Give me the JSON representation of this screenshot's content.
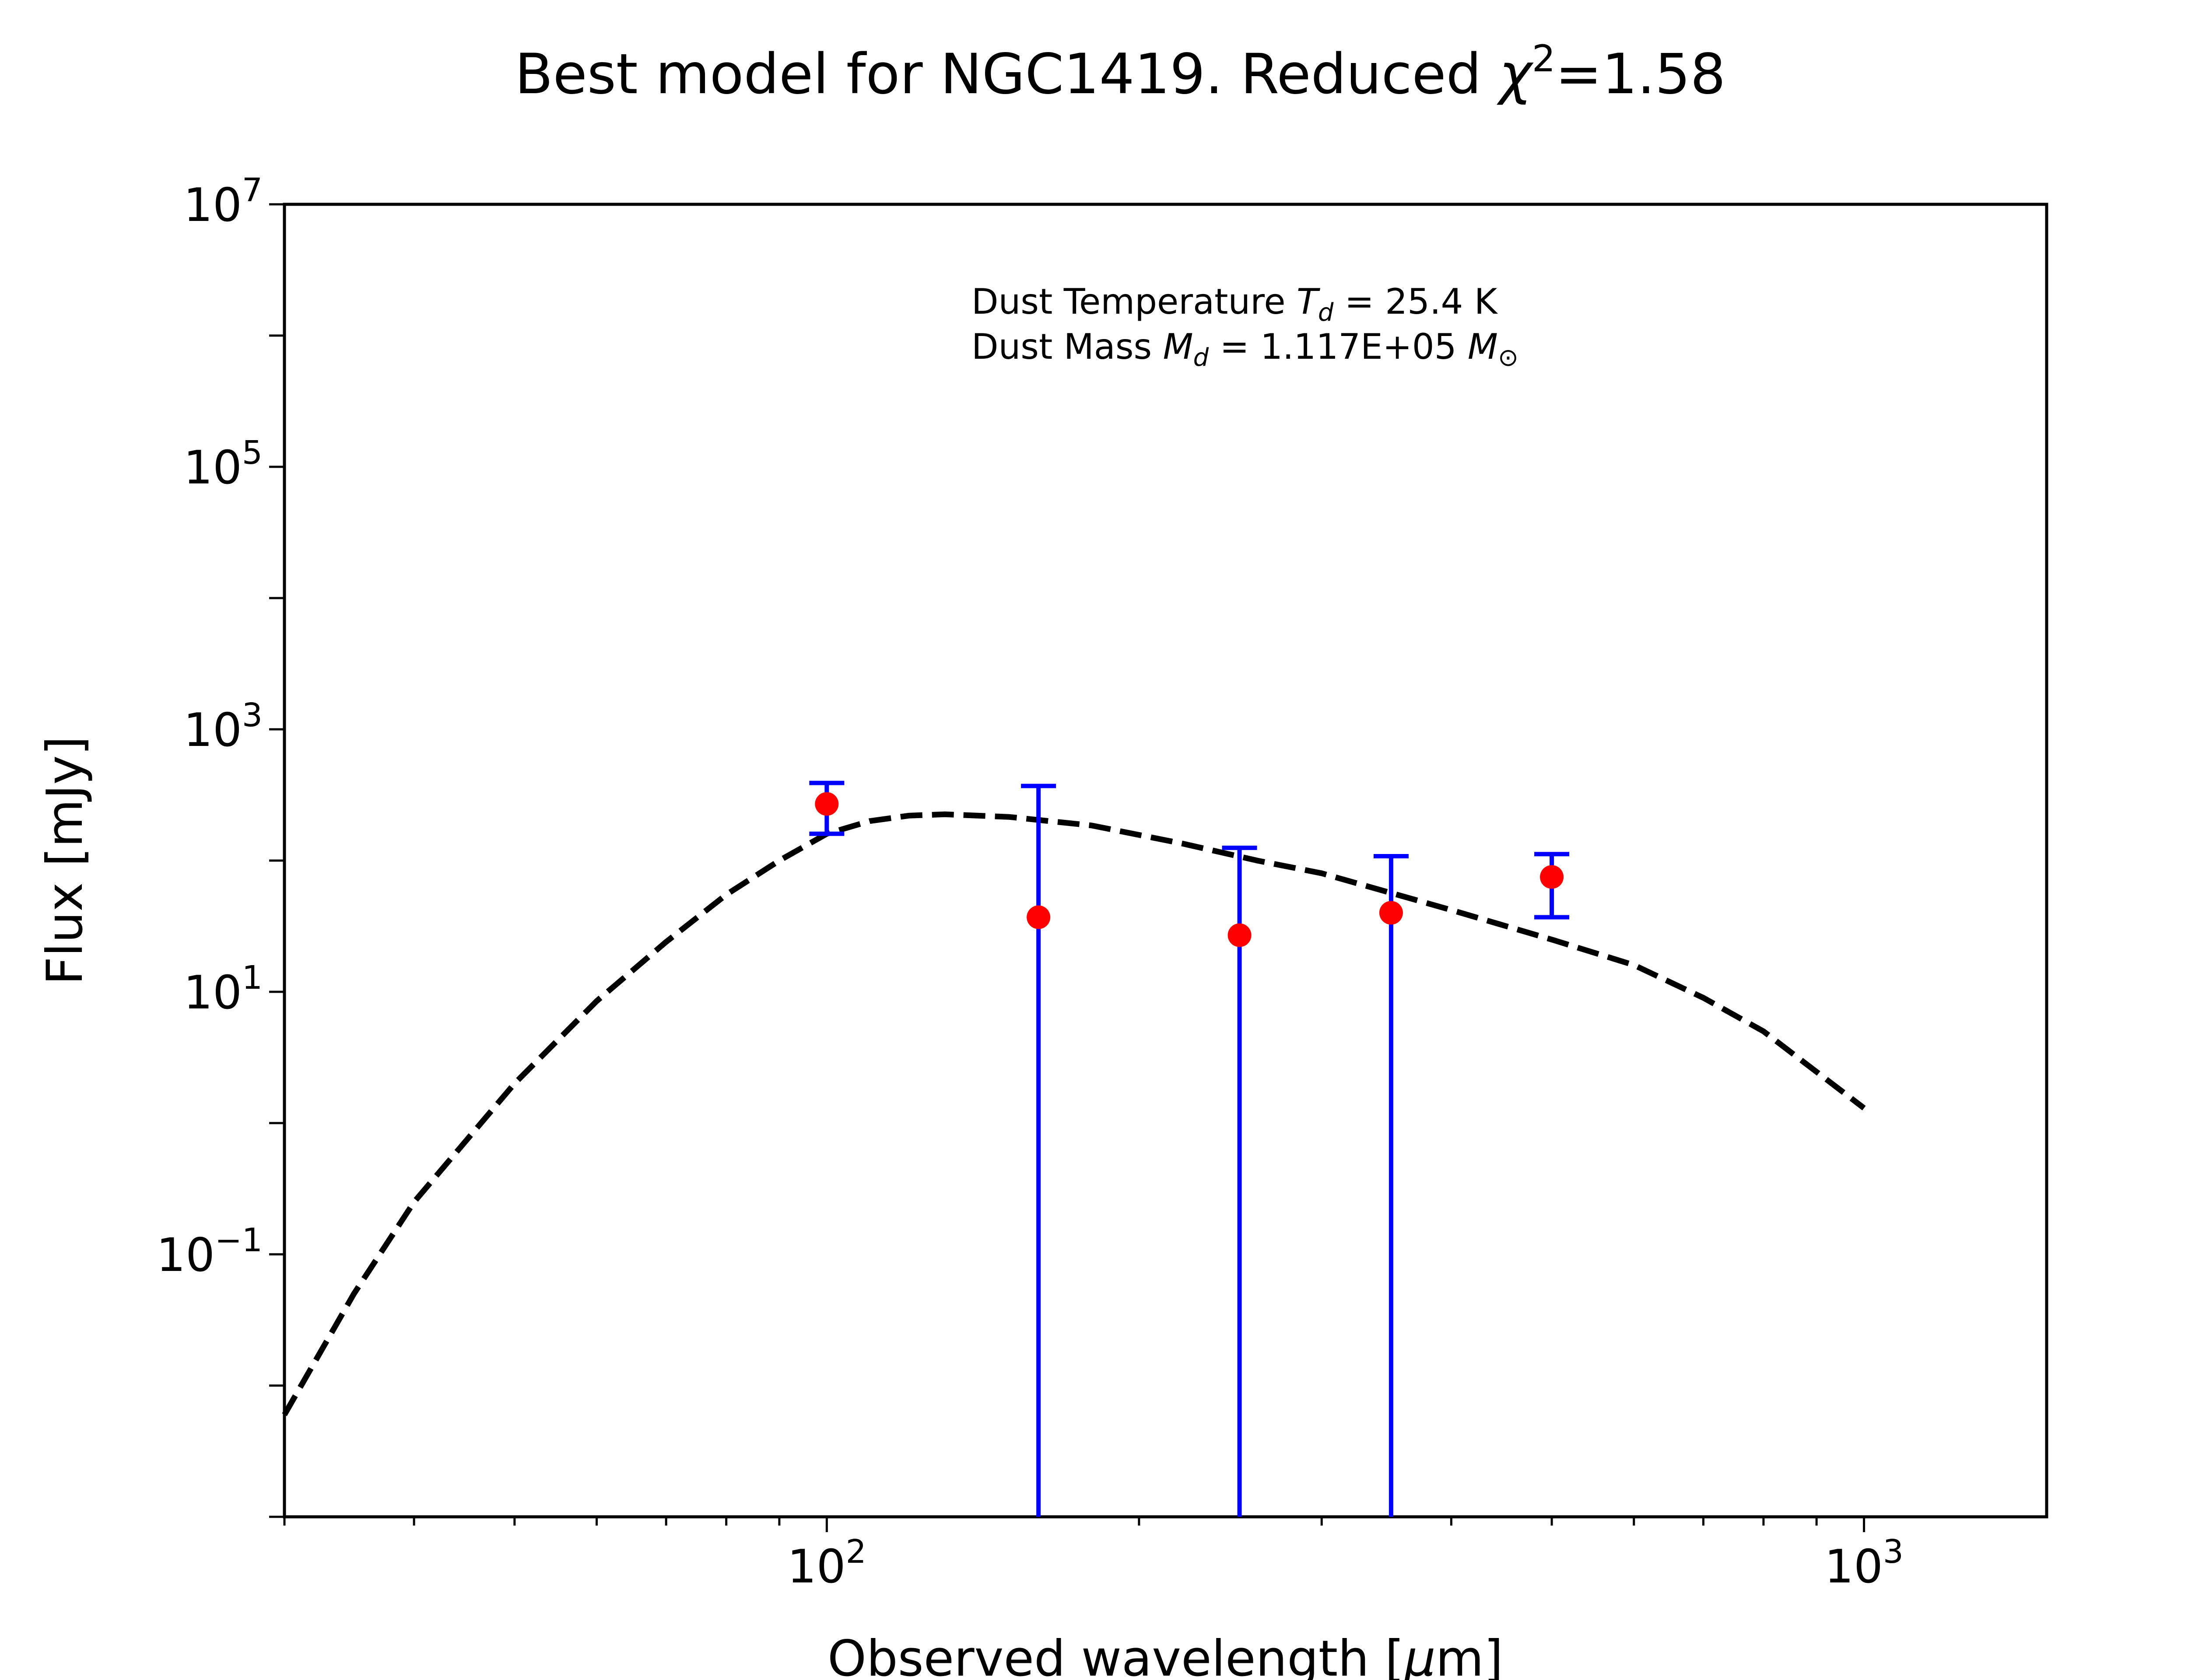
{
  "chart_data": {
    "type": "scatter",
    "title_prefix": "Best model for NGC1419. Reduced ",
    "title_chi": "χ",
    "title_sup": "2",
    "title_suffix": "=1.58",
    "xlabel_prefix": "Observed wavelength [",
    "xlabel_mu": "μ",
    "xlabel_suffix": "m]",
    "ylabel": "Flux [mJy]",
    "x_scale": "log",
    "y_scale": "log",
    "xlim": [
      30,
      1500
    ],
    "ylim": [
      0.001,
      10000000
    ],
    "x_tick_labels": [
      {
        "value": 100,
        "base": "10",
        "exp": "2"
      },
      {
        "value": 1000,
        "base": "10",
        "exp": "3"
      }
    ],
    "y_tick_labels": [
      {
        "value": 0.1,
        "base": "10",
        "exp": "−1"
      },
      {
        "value": 10,
        "base": "10",
        "exp": "1"
      },
      {
        "value": 1000,
        "base": "10",
        "exp": "3"
      },
      {
        "value": 100000,
        "base": "10",
        "exp": "5"
      },
      {
        "value": 10000000,
        "base": "10",
        "exp": "7"
      }
    ],
    "annotations": {
      "temperature": {
        "prefix": "Dust Temperature ",
        "symbol": "T",
        "sub": "d",
        "value": " = 25.4 K"
      },
      "mass": {
        "prefix": "Dust Mass ",
        "symbol": "M",
        "sub": "d",
        "value": " = 1.117E+05 ",
        "unit_symbol": "M",
        "unit_sub": "⊙"
      }
    },
    "series": [
      {
        "kind": "errorbar",
        "marker_color": "#ff0000",
        "errorbar_color": "#0000ff",
        "points": [
          {
            "x": 100,
            "y": 270,
            "ylow": 160,
            "yhigh": 390
          },
          {
            "x": 160,
            "y": 37,
            "ylow": 0.001,
            "yhigh": 370
          },
          {
            "x": 250,
            "y": 27,
            "ylow": 0.001,
            "yhigh": 125
          },
          {
            "x": 350,
            "y": 40,
            "ylow": 0.001,
            "yhigh": 108
          },
          {
            "x": 500,
            "y": 75,
            "ylow": 37,
            "yhigh": 112
          }
        ]
      },
      {
        "kind": "line",
        "style": "dashed",
        "color": "#000000",
        "x": [
          30,
          35,
          40,
          50,
          60,
          70,
          80,
          90,
          100,
          110,
          120,
          130,
          150,
          180,
          220,
          260,
          300,
          400,
          500,
          600,
          700,
          800,
          1000
        ],
        "y": [
          0.006,
          0.05,
          0.25,
          2.0,
          8.5,
          24,
          55,
          100,
          160,
          200,
          220,
          225,
          215,
          185,
          135,
          100,
          80,
          42,
          25,
          16,
          9,
          5,
          1.3
        ]
      }
    ]
  }
}
